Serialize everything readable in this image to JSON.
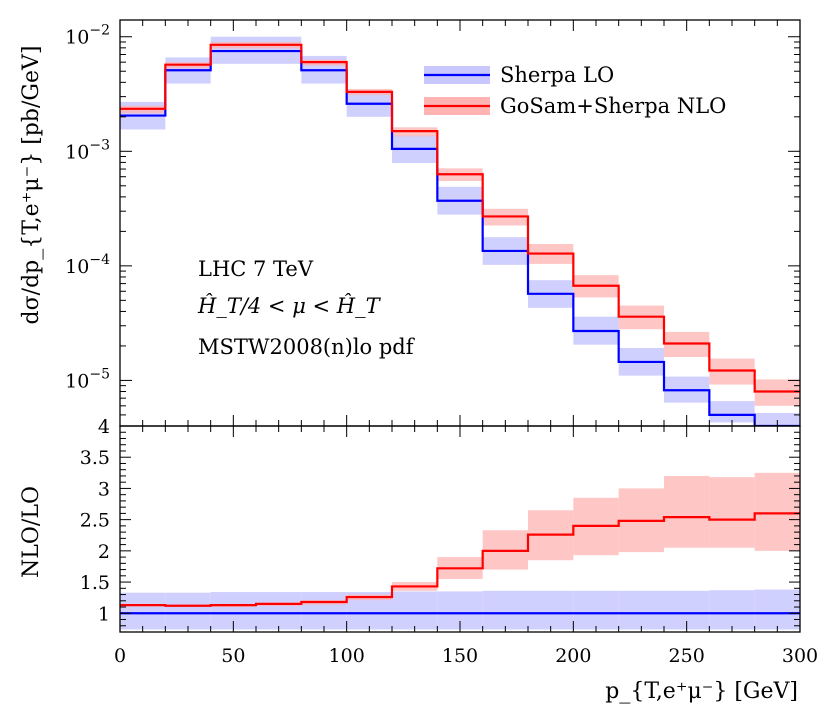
{
  "chart_data": [
    {
      "type": "line",
      "panel": "main",
      "ylabel": "dσ/dp_{T,e⁺μ⁻} [pb/GeV]",
      "yscale": "log",
      "ylim": [
        4e-06,
        0.014
      ],
      "xlim": [
        0,
        300
      ],
      "yticks": [
        {
          "value": 0.01,
          "base": "10",
          "exp": "−2"
        },
        {
          "value": 0.001,
          "base": "10",
          "exp": "−3"
        },
        {
          "value": 0.0001,
          "base": "10",
          "exp": "−4"
        },
        {
          "value": 1e-05,
          "base": "10",
          "exp": "−5"
        }
      ],
      "legend_position": "top-right",
      "bin_edges": [
        0,
        20,
        40,
        60,
        80,
        100,
        120,
        140,
        160,
        180,
        200,
        220,
        240,
        260,
        280,
        300
      ],
      "series": [
        {
          "name": "Sherpa LO",
          "color": "#0000ff",
          "band_color": "#c8c8ff",
          "values": [
            0.00205,
            0.0051,
            0.0075,
            0.0075,
            0.0051,
            0.0026,
            0.00105,
            0.00037,
            0.000135,
            5.7e-05,
            2.7e-05,
            1.45e-05,
            8.2e-06,
            5e-06,
            4e-06
          ],
          "band_low": [
            0.00155,
            0.0039,
            0.0058,
            0.0058,
            0.0039,
            0.002,
            0.00079,
            0.00028,
            0.000102,
            4.3e-05,
            2.05e-05,
            1.1e-05,
            6.4e-06,
            4.3e-06,
            4e-06
          ],
          "band_high": [
            0.0027,
            0.0066,
            0.01,
            0.01,
            0.0068,
            0.0034,
            0.00138,
            0.00049,
            0.000178,
            7.5e-05,
            3.6e-05,
            1.92e-05,
            1.08e-05,
            6.6e-06,
            5.2e-06
          ]
        },
        {
          "name": "GoSam+Sherpa NLO",
          "color": "#ff0000",
          "band_color": "#ffb3b3",
          "values": [
            0.00235,
            0.0057,
            0.0085,
            0.0085,
            0.006,
            0.0033,
            0.0015,
            0.00063,
            0.00027,
            0.000128,
            6.7e-05,
            3.6e-05,
            2.1e-05,
            1.22e-05,
            8e-06
          ],
          "band_low": [
            0.00215,
            0.0053,
            0.0079,
            0.0079,
            0.0056,
            0.0031,
            0.00135,
            0.00055,
            0.000225,
            0.000104,
            5.3e-05,
            2.8e-05,
            1.6e-05,
            9.2e-06,
            6e-06
          ],
          "band_high": [
            0.0025,
            0.006,
            0.009,
            0.009,
            0.0063,
            0.0035,
            0.00162,
            0.00071,
            0.000315,
            0.000155,
            8.3e-05,
            4.5e-05,
            2.65e-05,
            1.55e-05,
            1.02e-05
          ]
        }
      ],
      "annotations": [
        "LHC 7 TeV",
        "Ĥ_T/4 < μ < Ĥ_T",
        "MSTW2008(n)lo pdf"
      ]
    },
    {
      "type": "line",
      "panel": "ratio",
      "ylabel": "NLO/LO",
      "xlabel": "p_{T,e⁺μ⁻} [GeV]",
      "ylim": [
        0.7,
        4.0
      ],
      "xlim": [
        0,
        300
      ],
      "yticks": [
        "1",
        "1.5",
        "2",
        "2.5",
        "3",
        "3.5",
        "4"
      ],
      "xticks": [
        "0",
        "50",
        "100",
        "150",
        "200",
        "250",
        "300"
      ],
      "bin_edges": [
        0,
        20,
        40,
        60,
        80,
        100,
        120,
        140,
        160,
        180,
        200,
        220,
        240,
        260,
        280,
        300
      ],
      "series": [
        {
          "name": "Sherpa LO",
          "color": "#0000ff",
          "band_color": "#c8c8ff",
          "values": [
            1,
            1,
            1,
            1,
            1,
            1,
            1,
            1,
            1,
            1,
            1,
            1,
            1,
            1,
            1
          ],
          "band_low": [
            0.74,
            0.74,
            0.74,
            0.74,
            0.74,
            0.74,
            0.74,
            0.74,
            0.74,
            0.74,
            0.74,
            0.74,
            0.74,
            0.74,
            0.74
          ],
          "band_high": [
            1.33,
            1.33,
            1.34,
            1.34,
            1.34,
            1.34,
            1.35,
            1.35,
            1.36,
            1.36,
            1.36,
            1.36,
            1.36,
            1.37,
            1.38
          ]
        },
        {
          "name": "GoSam+Sherpa NLO",
          "color": "#ff0000",
          "band_color": "#ffb3b3",
          "values": [
            1.13,
            1.12,
            1.13,
            1.15,
            1.18,
            1.26,
            1.43,
            1.72,
            2.0,
            2.26,
            2.4,
            2.48,
            2.54,
            2.5,
            2.6
          ],
          "band_low": [
            1.11,
            1.1,
            1.1,
            1.12,
            1.14,
            1.21,
            1.36,
            1.55,
            1.7,
            1.85,
            1.93,
            1.98,
            2.05,
            2.05,
            2.0
          ],
          "band_high": [
            1.15,
            1.14,
            1.15,
            1.17,
            1.21,
            1.3,
            1.5,
            1.9,
            2.33,
            2.65,
            2.85,
            3.0,
            3.2,
            3.18,
            3.25
          ]
        }
      ]
    }
  ]
}
